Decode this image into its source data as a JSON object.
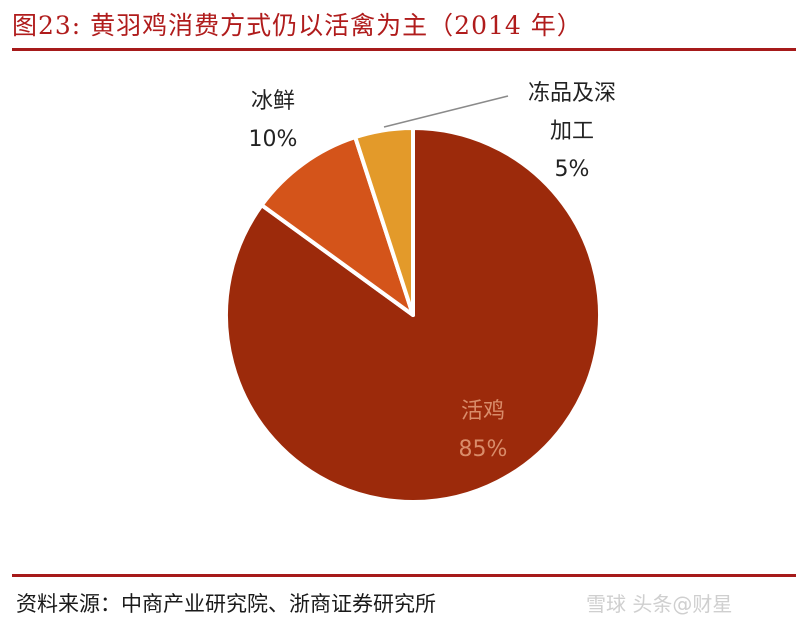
{
  "header": {
    "title": "图23:  黄羽鸡消费方式仍以活禽为主（2014 年）"
  },
  "footer": {
    "source": "资料来源：中商产业研究院、浙商证券研究所",
    "watermark": "雪球 头条@财星"
  },
  "chart_data": {
    "type": "pie",
    "title": "图23:  黄羽鸡消费方式仍以活禽为主（2014 年）",
    "slices": [
      {
        "label": "活鸡",
        "value": 85,
        "value_label": "85%",
        "color": "#9c2a0b",
        "text_color": "#d98c6a"
      },
      {
        "label": "冰鲜",
        "value": 10,
        "value_label": "10%",
        "color": "#d4541a",
        "text_color": "#222222"
      },
      {
        "label": "冻品及深加工",
        "label_lines": [
          "冻品及深",
          "加工"
        ],
        "value": 5,
        "value_label": "5%",
        "color": "#e39a2a",
        "text_color": "#222222"
      }
    ],
    "legend": "none"
  }
}
